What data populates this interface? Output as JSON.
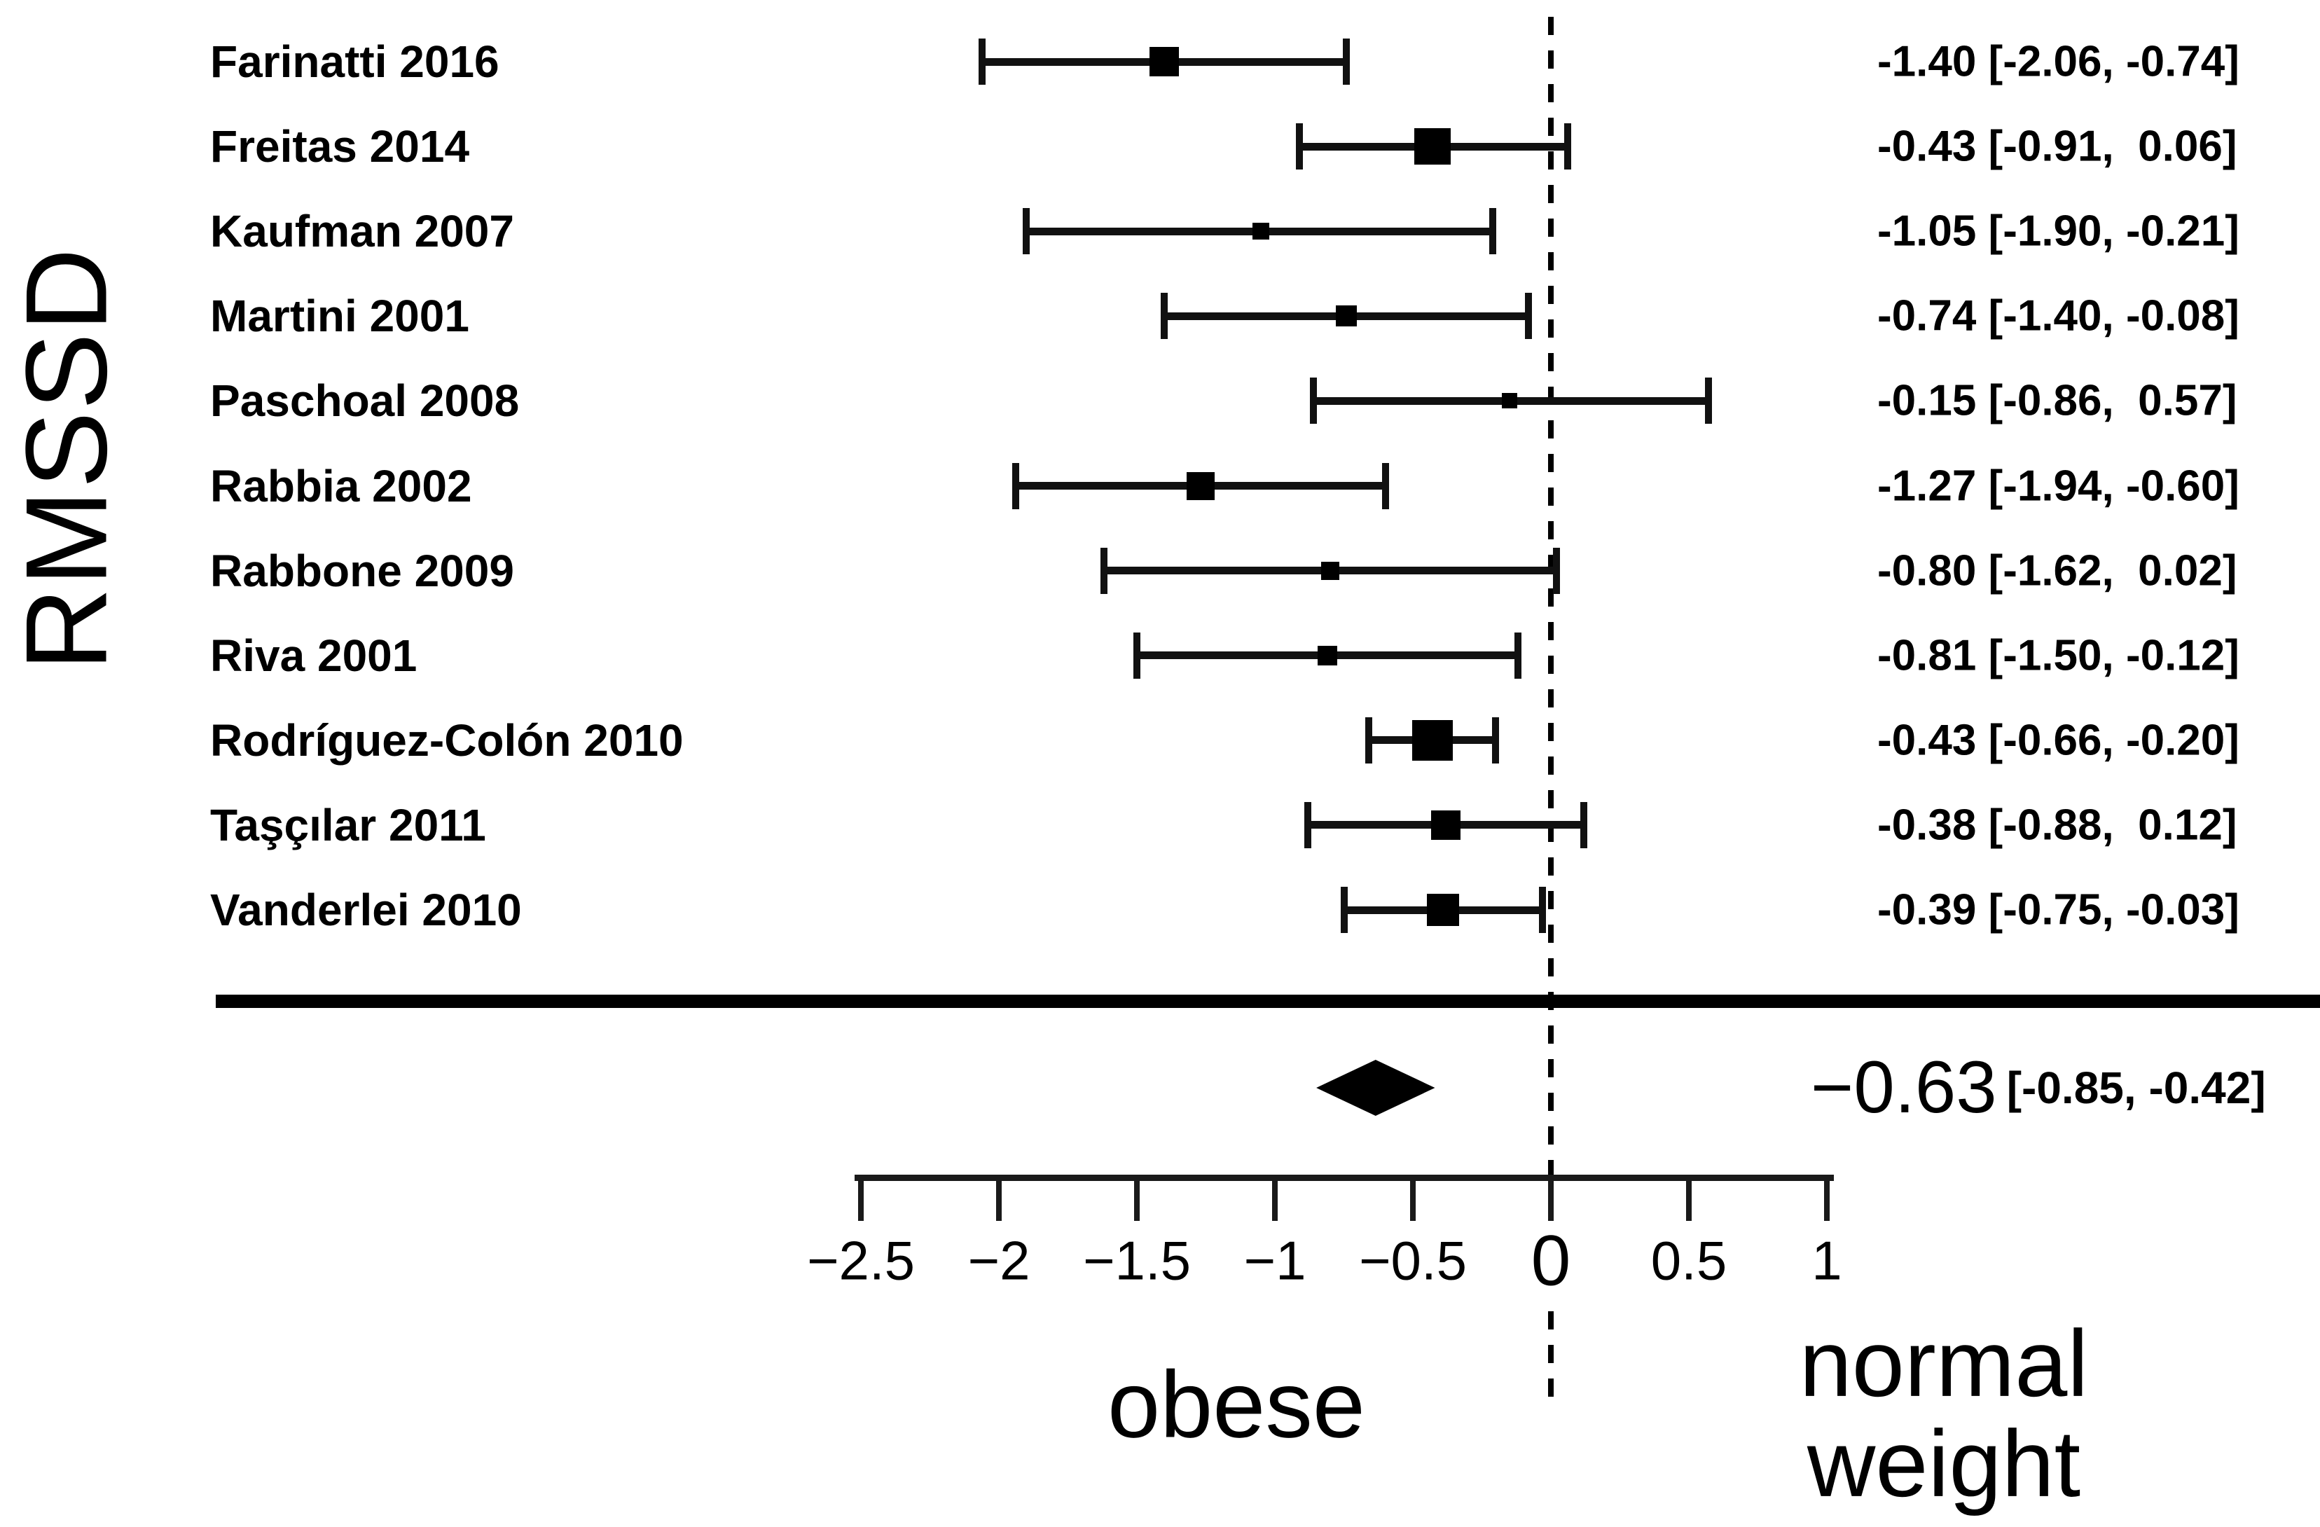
{
  "chart_data": {
    "type": "forest",
    "ylabel": "RMSSD",
    "xlim": [
      -2.5,
      1
    ],
    "x_ticks": [
      -2.5,
      -2,
      -1.5,
      -1,
      -0.5,
      0,
      0.5,
      1
    ],
    "x_tick_labels": [
      "−2.5",
      "−2",
      "−1.5",
      "−1",
      "−0.5",
      "0",
      "0.5",
      "1"
    ],
    "zero_line": 0,
    "grid": false,
    "groups": {
      "left": "obese",
      "right": "normal weight",
      "right_line1": "normal",
      "right_line2": "weight"
    },
    "studies": [
      {
        "label": "Farinatti 2016",
        "estimate": -1.4,
        "ci_lower": -2.06,
        "ci_upper": -0.74,
        "value_text": "-1.40 [-2.06, -0.74]",
        "marker_size": 42
      },
      {
        "label": "Freitas 2014",
        "estimate": -0.43,
        "ci_lower": -0.91,
        "ci_upper": 0.06,
        "value_text": "-0.43 [-0.91,  0.06]",
        "marker_size": 52
      },
      {
        "label": "Kaufman 2007",
        "estimate": -1.05,
        "ci_lower": -1.9,
        "ci_upper": -0.21,
        "value_text": "-1.05 [-1.90, -0.21]",
        "marker_size": 24
      },
      {
        "label": "Martini 2001",
        "estimate": -0.74,
        "ci_lower": -1.4,
        "ci_upper": -0.08,
        "value_text": "-0.74 [-1.40, -0.08]",
        "marker_size": 30
      },
      {
        "label": "Paschoal 2008",
        "estimate": -0.15,
        "ci_lower": -0.86,
        "ci_upper": 0.57,
        "value_text": "-0.15 [-0.86,  0.57]",
        "marker_size": 22
      },
      {
        "label": "Rabbia 2002",
        "estimate": -1.27,
        "ci_lower": -1.94,
        "ci_upper": -0.6,
        "value_text": "-1.27 [-1.94, -0.60]",
        "marker_size": 40
      },
      {
        "label": "Rabbone 2009",
        "estimate": -0.8,
        "ci_lower": -1.62,
        "ci_upper": 0.02,
        "value_text": "-0.80 [-1.62,  0.02]",
        "marker_size": 26
      },
      {
        "label": "Riva 2001",
        "estimate": -0.81,
        "ci_lower": -1.5,
        "ci_upper": -0.12,
        "value_text": "-0.81 [-1.50, -0.12]",
        "marker_size": 28
      },
      {
        "label": "Rodríguez-Colón 2010",
        "estimate": -0.43,
        "ci_lower": -0.66,
        "ci_upper": -0.2,
        "value_text": "-0.43 [-0.66, -0.20]",
        "marker_size": 58
      },
      {
        "label": "Taşçılar 2011",
        "estimate": -0.38,
        "ci_lower": -0.88,
        "ci_upper": 0.12,
        "value_text": "-0.38 [-0.88,  0.12]",
        "marker_size": 42
      },
      {
        "label": "Vanderlei 2010",
        "estimate": -0.39,
        "ci_lower": -0.75,
        "ci_upper": -0.03,
        "value_text": "-0.39 [-0.75, -0.03]",
        "marker_size": 46
      }
    ],
    "summary": {
      "estimate": -0.63,
      "ci_lower": -0.85,
      "ci_upper": -0.42,
      "value_text": "−0.63",
      "ci_text": "[-0.85, -0.42]"
    }
  }
}
